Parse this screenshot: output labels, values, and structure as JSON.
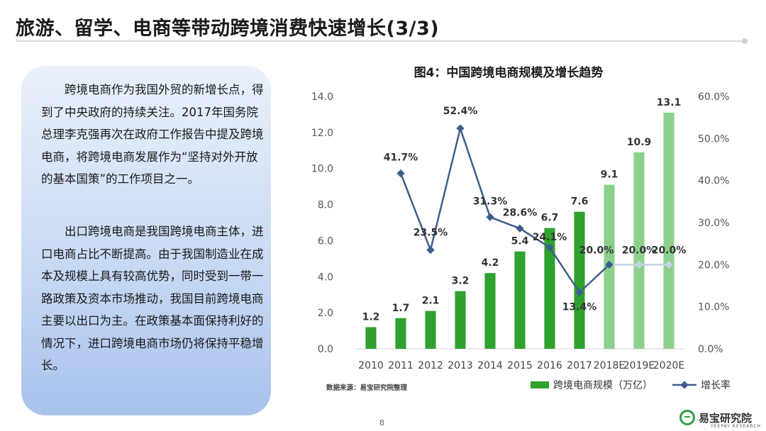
{
  "page": {
    "title": "旅游、留学、电商等带动跨境消费快速增长(3/3)",
    "page_number": "8",
    "logo_text": "易宝研究院",
    "logo_sub": "YEEPAY RESEARCH"
  },
  "textbox": {
    "para1": "跨境电商作为我国外贸的新增长点，得到了中央政府的持续关注。2017年国务院总理李克强再次在政府工作报告中提及跨境电商，将跨境电商发展作为“坚持对外开放的基本国策”的工作项目之一。",
    "para2": "出口跨境电商是我国跨境电商主体，进口电商占比不断提高。由于我国制造业在成本及规模上具有较高优势，同时受到一带一路政策及资本市场推动，我国目前跨境电商主要以出口为主。在政策基本面保持利好的情况下，进口跨境电商市场仍将保持平稳增长。"
  },
  "chart_data": {
    "type": "bar",
    "title": "图4：中国跨境电商规模及增长趋势",
    "categories": [
      "2010",
      "2011",
      "2012",
      "2013",
      "2014",
      "2015",
      "2016",
      "2017",
      "2018E",
      "2019E",
      "2020E"
    ],
    "series": [
      {
        "name": "跨境电商规模（万亿）",
        "type": "bar",
        "axis": "left",
        "values": [
          1.2,
          1.7,
          2.1,
          3.2,
          4.2,
          5.4,
          6.7,
          7.6,
          9.1,
          10.9,
          13.1
        ],
        "labels": [
          "1.2",
          "1.7",
          "2.1",
          "3.2",
          "4.2",
          "5.4",
          "6.7",
          "7.6",
          "9.1",
          "10.9",
          "13.1"
        ]
      },
      {
        "name": "增长率",
        "type": "line",
        "axis": "right",
        "values": [
          null,
          41.7,
          23.5,
          52.4,
          31.3,
          28.6,
          24.1,
          13.4,
          20.0,
          20.0,
          20.0
        ],
        "labels": [
          "",
          "41.7%",
          "23.5%",
          "52.4%",
          "31.3%",
          "28.6%",
          "24.1%",
          "13.4%",
          "20.0%",
          "20.0%",
          "20.0%"
        ]
      }
    ],
    "left_ticks": [
      "0.0",
      "2.0",
      "4.0",
      "6.0",
      "8.0",
      "10.0",
      "12.0",
      "14.0"
    ],
    "right_ticks": [
      "0.0%",
      "10.0%",
      "20.0%",
      "30.0%",
      "40.0%",
      "50.0%",
      "60.0%"
    ],
    "ylim_left": [
      0,
      14
    ],
    "ylim_right": [
      0,
      60
    ],
    "forecast_from_index": 8,
    "source": "数据来源：易宝研究院整理",
    "legend_position": "bottom",
    "colors": {
      "bar": "#2ea12f",
      "bar_forecast": "#8cd08c",
      "line": "#3d5e8c",
      "line_forecast": "#c6d3e6"
    }
  }
}
